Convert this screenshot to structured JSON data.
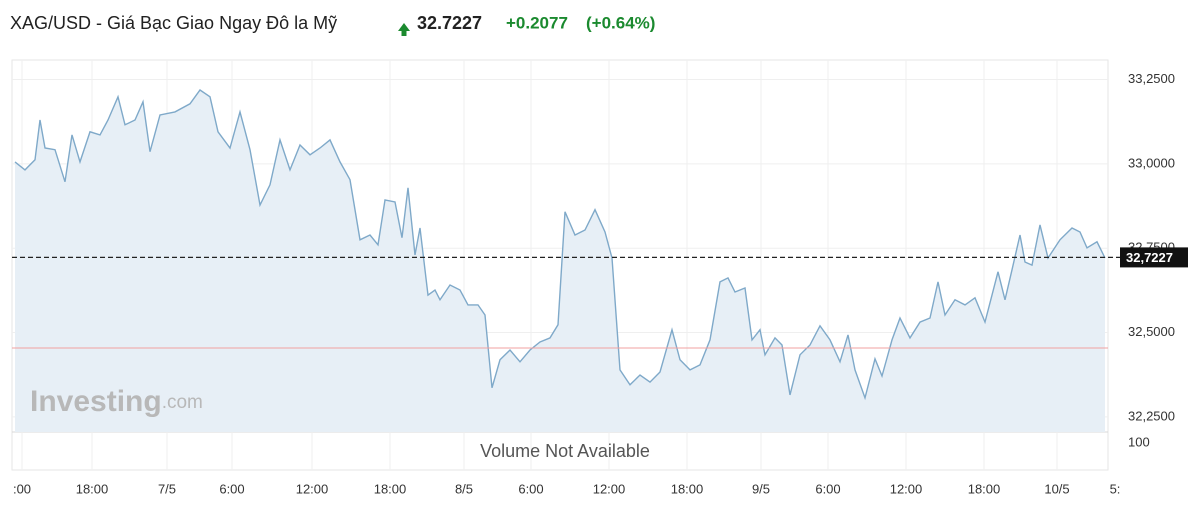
{
  "header": {
    "title": "XAG/USD - Giá Bạc Giao Ngay Đô la Mỹ",
    "price": "32.7227",
    "change": "+0.2077",
    "change_percent": "(+0.64%)"
  },
  "watermark": {
    "brand": "Investing",
    "suffix": ".com"
  },
  "chart_data": {
    "type": "area",
    "color": "#7fa9c9",
    "fill": "#e7eff6",
    "grid": true,
    "x": [
      3,
      13,
      23,
      28,
      33,
      43,
      53,
      60,
      68,
      78,
      88,
      96,
      106,
      113,
      123,
      131,
      138,
      148,
      163,
      178,
      188,
      198,
      206,
      218,
      228,
      238,
      248,
      258,
      268,
      278,
      288,
      298,
      308,
      318,
      328,
      338,
      348,
      358,
      366,
      373,
      383,
      390,
      396,
      403,
      408,
      416,
      423,
      428,
      438,
      448,
      456,
      466,
      473,
      480,
      488,
      498,
      508,
      518,
      528,
      538,
      546,
      553,
      563,
      573,
      583,
      593,
      600,
      608,
      618,
      628,
      638,
      648,
      660,
      668,
      678,
      688,
      698,
      708,
      716,
      723,
      733,
      740,
      748,
      753,
      763,
      770,
      778,
      788,
      798,
      808,
      818,
      828,
      836,
      843,
      853,
      863,
      870,
      880,
      888,
      898,
      908,
      918,
      926,
      933,
      943,
      953,
      963,
      973,
      980,
      986,
      993,
      1000,
      1008,
      1013,
      1020,
      1028,
      1036,
      1048,
      1060,
      1068,
      1075,
      1085,
      1093
    ],
    "series": [
      {
        "name": "XAG/USD",
        "values": [
          33.006,
          32.982,
          33.012,
          33.13,
          33.047,
          33.042,
          32.947,
          33.086,
          33.006,
          33.095,
          33.086,
          33.13,
          33.199,
          33.116,
          33.13,
          33.184,
          33.036,
          33.145,
          33.154,
          33.178,
          33.219,
          33.199,
          33.095,
          33.047,
          33.154,
          33.042,
          32.878,
          32.938,
          33.071,
          32.982,
          33.056,
          33.027,
          33.047,
          33.071,
          33.006,
          32.953,
          32.775,
          32.789,
          32.76,
          32.893,
          32.887,
          32.781,
          32.929,
          32.73,
          32.81,
          32.611,
          32.626,
          32.597,
          32.641,
          32.626,
          32.582,
          32.582,
          32.552,
          32.336,
          32.419,
          32.448,
          32.413,
          32.448,
          32.472,
          32.484,
          32.523,
          32.858,
          32.789,
          32.804,
          32.864,
          32.798,
          32.721,
          32.389,
          32.345,
          32.374,
          32.353,
          32.383,
          32.508,
          32.419,
          32.389,
          32.404,
          32.478,
          32.65,
          32.662,
          32.62,
          32.632,
          32.478,
          32.508,
          32.434,
          32.484,
          32.463,
          32.315,
          32.434,
          32.463,
          32.52,
          32.478,
          32.413,
          32.493,
          32.389,
          32.306,
          32.422,
          32.371,
          32.478,
          32.543,
          32.484,
          32.531,
          32.543,
          32.65,
          32.552,
          32.597,
          32.582,
          32.603,
          32.531,
          32.611,
          32.68,
          32.597,
          32.686,
          32.789,
          32.709,
          32.7,
          32.819,
          32.721,
          32.775,
          32.81,
          32.798,
          32.751,
          32.769,
          32.721
        ]
      }
    ],
    "current_price": {
      "value": 32.7227,
      "label": "32,7227"
    },
    "reference_line": 32.454,
    "xlim": [
      0,
      1096
    ],
    "xticks": [
      {
        "value": 10,
        "label": ":00"
      },
      {
        "value": 80,
        "label": "18:00"
      },
      {
        "value": 155,
        "label": "7/5"
      },
      {
        "value": 220,
        "label": "6:00"
      },
      {
        "value": 300,
        "label": "12:00"
      },
      {
        "value": 378,
        "label": "18:00"
      },
      {
        "value": 452,
        "label": "8/5"
      },
      {
        "value": 519,
        "label": "6:00"
      },
      {
        "value": 597,
        "label": "12:00"
      },
      {
        "value": 675,
        "label": "18:00"
      },
      {
        "value": 749,
        "label": "9/5"
      },
      {
        "value": 816,
        "label": "6:00"
      },
      {
        "value": 894,
        "label": "12:00"
      },
      {
        "value": 972,
        "label": "18:00"
      },
      {
        "value": 1045,
        "label": "10/5"
      },
      {
        "value": 1103,
        "label": "5:"
      }
    ],
    "ylim": [
      32.205,
      33.308
    ],
    "yticks": [
      {
        "value": 32.25,
        "label": "32,2500"
      },
      {
        "value": 32.5,
        "label": "32,5000"
      },
      {
        "value": 32.75,
        "label": "32,7500"
      },
      {
        "value": 33,
        "label": "33,0000"
      },
      {
        "value": 33.25,
        "label": "33,2500"
      }
    ],
    "volume_panel": {
      "message": "Volume Not Available",
      "ytick": 100
    }
  }
}
